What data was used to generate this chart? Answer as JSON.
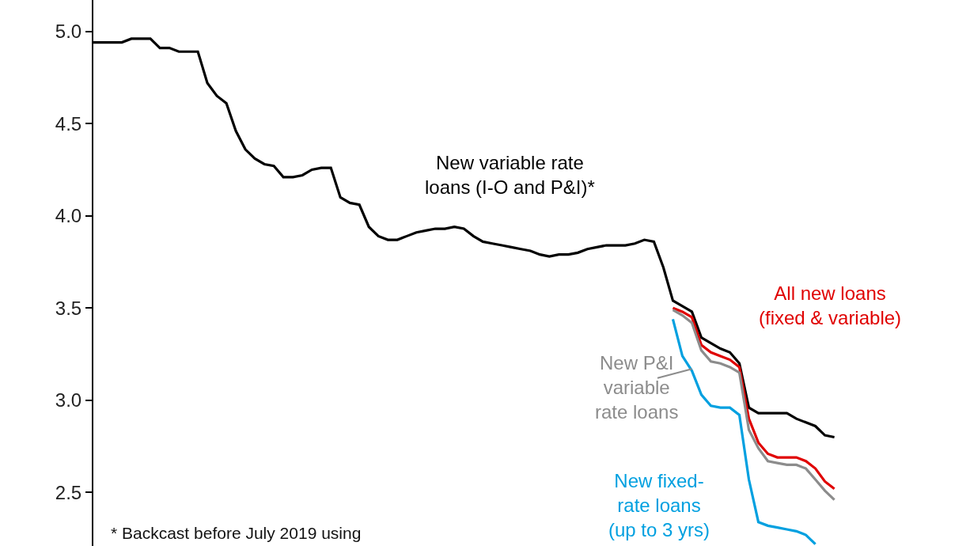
{
  "chart_data": {
    "type": "line",
    "categories": [
      null,
      null,
      null,
      null,
      null,
      null,
      null,
      null,
      null,
      null,
      null,
      null,
      null,
      null,
      null,
      null,
      null,
      null,
      null,
      null,
      null,
      null,
      null,
      null,
      null,
      null,
      null,
      null,
      null,
      null,
      null,
      null,
      null,
      null,
      null,
      null,
      null,
      null,
      null,
      null,
      null,
      null,
      null,
      null,
      null,
      null,
      null,
      null,
      null,
      null,
      null,
      null,
      null,
      null,
      null,
      null,
      null,
      null,
      null,
      null,
      null,
      null,
      null,
      null,
      null,
      null,
      null,
      null,
      null,
      null,
      null,
      null,
      null,
      null,
      null,
      null,
      null,
      null,
      null
    ],
    "series": [
      {
        "name": "New variable rate loans (I-O and P&I)*",
        "color": "#000000",
        "values": [
          4.94,
          4.94,
          4.94,
          4.94,
          4.96,
          4.96,
          4.96,
          4.91,
          4.91,
          4.89,
          4.89,
          4.89,
          4.72,
          4.65,
          4.61,
          4.46,
          4.36,
          4.31,
          4.28,
          4.27,
          4.21,
          4.21,
          4.22,
          4.25,
          4.26,
          4.26,
          4.1,
          4.07,
          4.06,
          3.94,
          3.89,
          3.87,
          3.87,
          3.89,
          3.91,
          3.92,
          3.93,
          3.93,
          3.94,
          3.93,
          3.89,
          3.86,
          3.85,
          3.84,
          3.83,
          3.82,
          3.81,
          3.79,
          3.78,
          3.79,
          3.79,
          3.8,
          3.82,
          3.83,
          3.84,
          3.84,
          3.84,
          3.85,
          3.87,
          3.86,
          3.72,
          3.54,
          3.51,
          3.48,
          3.34,
          3.31,
          3.28,
          3.26,
          3.2,
          2.96,
          2.93,
          2.93,
          2.93,
          2.93,
          2.9,
          2.88,
          2.86,
          2.81,
          2.8
        ]
      },
      {
        "name": "All new loans (fixed & variable)",
        "color": "#e00000",
        "values": [
          null,
          null,
          null,
          null,
          null,
          null,
          null,
          null,
          null,
          null,
          null,
          null,
          null,
          null,
          null,
          null,
          null,
          null,
          null,
          null,
          null,
          null,
          null,
          null,
          null,
          null,
          null,
          null,
          null,
          null,
          null,
          null,
          null,
          null,
          null,
          null,
          null,
          null,
          null,
          null,
          null,
          null,
          null,
          null,
          null,
          null,
          null,
          null,
          null,
          null,
          null,
          null,
          null,
          null,
          null,
          null,
          null,
          null,
          null,
          null,
          null,
          3.5,
          3.48,
          3.45,
          3.3,
          3.26,
          3.24,
          3.22,
          3.18,
          2.9,
          2.77,
          2.71,
          2.69,
          2.69,
          2.69,
          2.67,
          2.63,
          2.56,
          2.52
        ]
      },
      {
        "name": "New P&I variable rate loans",
        "color": "#8c8c8c",
        "values": [
          null,
          null,
          null,
          null,
          null,
          null,
          null,
          null,
          null,
          null,
          null,
          null,
          null,
          null,
          null,
          null,
          null,
          null,
          null,
          null,
          null,
          null,
          null,
          null,
          null,
          null,
          null,
          null,
          null,
          null,
          null,
          null,
          null,
          null,
          null,
          null,
          null,
          null,
          null,
          null,
          null,
          null,
          null,
          null,
          null,
          null,
          null,
          null,
          null,
          null,
          null,
          null,
          null,
          null,
          null,
          null,
          null,
          null,
          null,
          null,
          null,
          3.49,
          3.46,
          3.42,
          3.27,
          3.21,
          3.2,
          3.18,
          3.15,
          2.84,
          2.74,
          2.67,
          2.66,
          2.65,
          2.65,
          2.63,
          2.57,
          2.51,
          2.46
        ]
      },
      {
        "name": "New fixed-rate loans (up to 3 yrs)",
        "color": "#00a0e0",
        "values": [
          null,
          null,
          null,
          null,
          null,
          null,
          null,
          null,
          null,
          null,
          null,
          null,
          null,
          null,
          null,
          null,
          null,
          null,
          null,
          null,
          null,
          null,
          null,
          null,
          null,
          null,
          null,
          null,
          null,
          null,
          null,
          null,
          null,
          null,
          null,
          null,
          null,
          null,
          null,
          null,
          null,
          null,
          null,
          null,
          null,
          null,
          null,
          null,
          null,
          null,
          null,
          null,
          null,
          null,
          null,
          null,
          null,
          null,
          null,
          null,
          null,
          3.44,
          3.24,
          3.16,
          3.03,
          2.97,
          2.96,
          2.96,
          2.92,
          2.57,
          2.34,
          2.32,
          2.31,
          2.3,
          2.29,
          2.27,
          2.22,
          null,
          null
        ]
      }
    ],
    "ylim": [
      2.21,
      5.17
    ],
    "yticks": [
      {
        "value": 2.5,
        "label": "2.5"
      },
      {
        "value": 3,
        "label": "3.0"
      },
      {
        "value": 3.5,
        "label": "3.5"
      },
      {
        "value": 4,
        "label": "4.0"
      },
      {
        "value": 4.5,
        "label": "4.5"
      },
      {
        "value": 5,
        "label": "5.0"
      }
    ],
    "grid": false,
    "legend": false,
    "marker": "none",
    "line_style": "solid",
    "tick_labels": "y",
    "annotations": [
      "* Backcast before July 2019 using"
    ]
  }
}
